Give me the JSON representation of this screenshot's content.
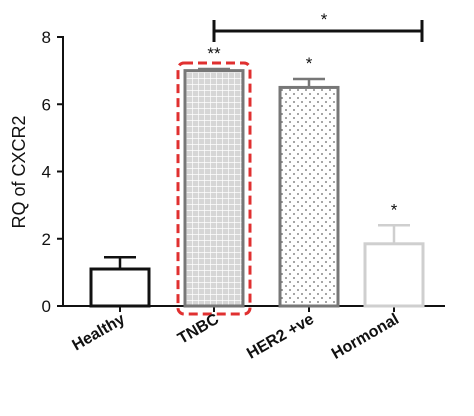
{
  "chart_data": {
    "type": "bar",
    "categories": [
      "Healthy",
      "TNBC",
      "HER2 +ve",
      "Hormonal"
    ],
    "values": [
      1.1,
      7.0,
      6.5,
      1.85
    ],
    "errors": [
      0.35,
      0.05,
      0.25,
      0.55
    ],
    "annotations": [
      "",
      "**",
      "*",
      "*"
    ],
    "bar_styles": [
      "outline-black",
      "grid-grey",
      "dotted-grey",
      "outline-light-grey"
    ],
    "highlight": "TNBC",
    "comparison": {
      "from": "TNBC",
      "to": "Hormonal",
      "label": "*"
    },
    "ylabel": "RQ of CXCR2",
    "xlabel": "",
    "ylim": [
      0,
      8
    ],
    "yticks": [
      0,
      2,
      4,
      6,
      8
    ],
    "grid": false,
    "colors": {
      "black": "#111111",
      "bar_grey": "#777777",
      "fill_light": "#d6d6d6",
      "hormonal_grey": "#cfcfcf",
      "highlight_red": "#e03030"
    }
  }
}
